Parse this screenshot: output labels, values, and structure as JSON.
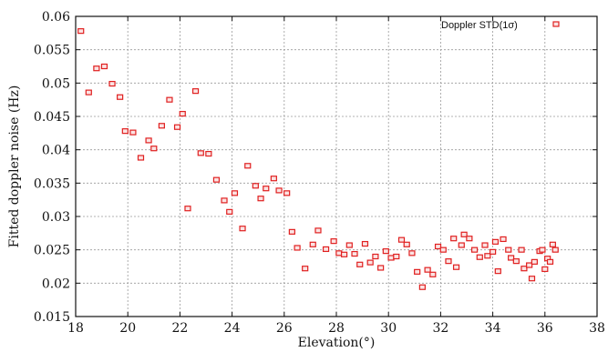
{
  "chart_data": {
    "type": "scatter",
    "title": "",
    "xlabel": "Elevation(°)",
    "ylabel": "Fitted doppler noise (Hz)",
    "xlim": [
      18,
      38
    ],
    "ylim": [
      0.015,
      0.06
    ],
    "xticks": [
      "18",
      "20",
      "22",
      "24",
      "26",
      "28",
      "30",
      "32",
      "34",
      "36",
      "38"
    ],
    "yticks": [
      "0.015",
      "0.02",
      "0.025",
      "0.03",
      "0.035",
      "0.04",
      "0.045",
      "0.05",
      "0.055",
      "0.06"
    ],
    "grid": true,
    "legend_position": "top-right",
    "marker_color": "#e02020",
    "series": [
      {
        "name": "Doppler STD(1σ)",
        "points": [
          [
            18.2,
            0.0578
          ],
          [
            18.5,
            0.0486
          ],
          [
            18.8,
            0.0522
          ],
          [
            19.1,
            0.0525
          ],
          [
            19.4,
            0.0499
          ],
          [
            19.7,
            0.0479
          ],
          [
            19.9,
            0.0428
          ],
          [
            20.2,
            0.0426
          ],
          [
            20.5,
            0.0388
          ],
          [
            20.8,
            0.0414
          ],
          [
            21.0,
            0.0402
          ],
          [
            21.3,
            0.0436
          ],
          [
            21.6,
            0.0475
          ],
          [
            21.9,
            0.0434
          ],
          [
            22.1,
            0.0454
          ],
          [
            22.3,
            0.0312
          ],
          [
            22.6,
            0.0488
          ],
          [
            22.8,
            0.0395
          ],
          [
            23.1,
            0.0394
          ],
          [
            23.4,
            0.0355
          ],
          [
            23.7,
            0.0324
          ],
          [
            23.9,
            0.0307
          ],
          [
            24.1,
            0.0335
          ],
          [
            24.4,
            0.0282
          ],
          [
            24.6,
            0.0376
          ],
          [
            24.9,
            0.0346
          ],
          [
            25.1,
            0.0327
          ],
          [
            25.3,
            0.0342
          ],
          [
            25.6,
            0.0357
          ],
          [
            25.8,
            0.0339
          ],
          [
            26.1,
            0.0335
          ],
          [
            26.3,
            0.0277
          ],
          [
            26.5,
            0.0253
          ],
          [
            26.8,
            0.0222
          ],
          [
            27.1,
            0.0258
          ],
          [
            27.3,
            0.0279
          ],
          [
            27.6,
            0.0251
          ],
          [
            27.9,
            0.0263
          ],
          [
            28.1,
            0.0245
          ],
          [
            28.3,
            0.0243
          ],
          [
            28.5,
            0.0257
          ],
          [
            28.7,
            0.0244
          ],
          [
            28.9,
            0.0228
          ],
          [
            29.1,
            0.0259
          ],
          [
            29.3,
            0.0231
          ],
          [
            29.5,
            0.024
          ],
          [
            29.7,
            0.0223
          ],
          [
            29.9,
            0.0248
          ],
          [
            30.1,
            0.0238
          ],
          [
            30.3,
            0.024
          ],
          [
            30.5,
            0.0265
          ],
          [
            30.7,
            0.0258
          ],
          [
            30.9,
            0.0245
          ],
          [
            31.1,
            0.0217
          ],
          [
            31.3,
            0.0194
          ],
          [
            31.5,
            0.022
          ],
          [
            31.7,
            0.0213
          ],
          [
            31.9,
            0.0255
          ],
          [
            32.1,
            0.025
          ],
          [
            32.3,
            0.0233
          ],
          [
            32.5,
            0.0267
          ],
          [
            32.6,
            0.0224
          ],
          [
            32.8,
            0.0257
          ],
          [
            32.9,
            0.0273
          ],
          [
            33.1,
            0.0267
          ],
          [
            33.3,
            0.025
          ],
          [
            33.5,
            0.0239
          ],
          [
            33.7,
            0.0257
          ],
          [
            33.8,
            0.0241
          ],
          [
            34.0,
            0.0247
          ],
          [
            34.1,
            0.0262
          ],
          [
            34.2,
            0.0218
          ],
          [
            34.4,
            0.0266
          ],
          [
            34.6,
            0.025
          ],
          [
            34.7,
            0.0238
          ],
          [
            34.9,
            0.0233
          ],
          [
            35.1,
            0.025
          ],
          [
            35.2,
            0.0222
          ],
          [
            35.4,
            0.0227
          ],
          [
            35.5,
            0.0207
          ],
          [
            35.6,
            0.0232
          ],
          [
            35.8,
            0.0248
          ],
          [
            35.9,
            0.025
          ],
          [
            36.0,
            0.0221
          ],
          [
            36.1,
            0.0237
          ],
          [
            36.2,
            0.0232
          ],
          [
            36.3,
            0.0258
          ],
          [
            36.4,
            0.025
          ]
        ]
      }
    ]
  }
}
